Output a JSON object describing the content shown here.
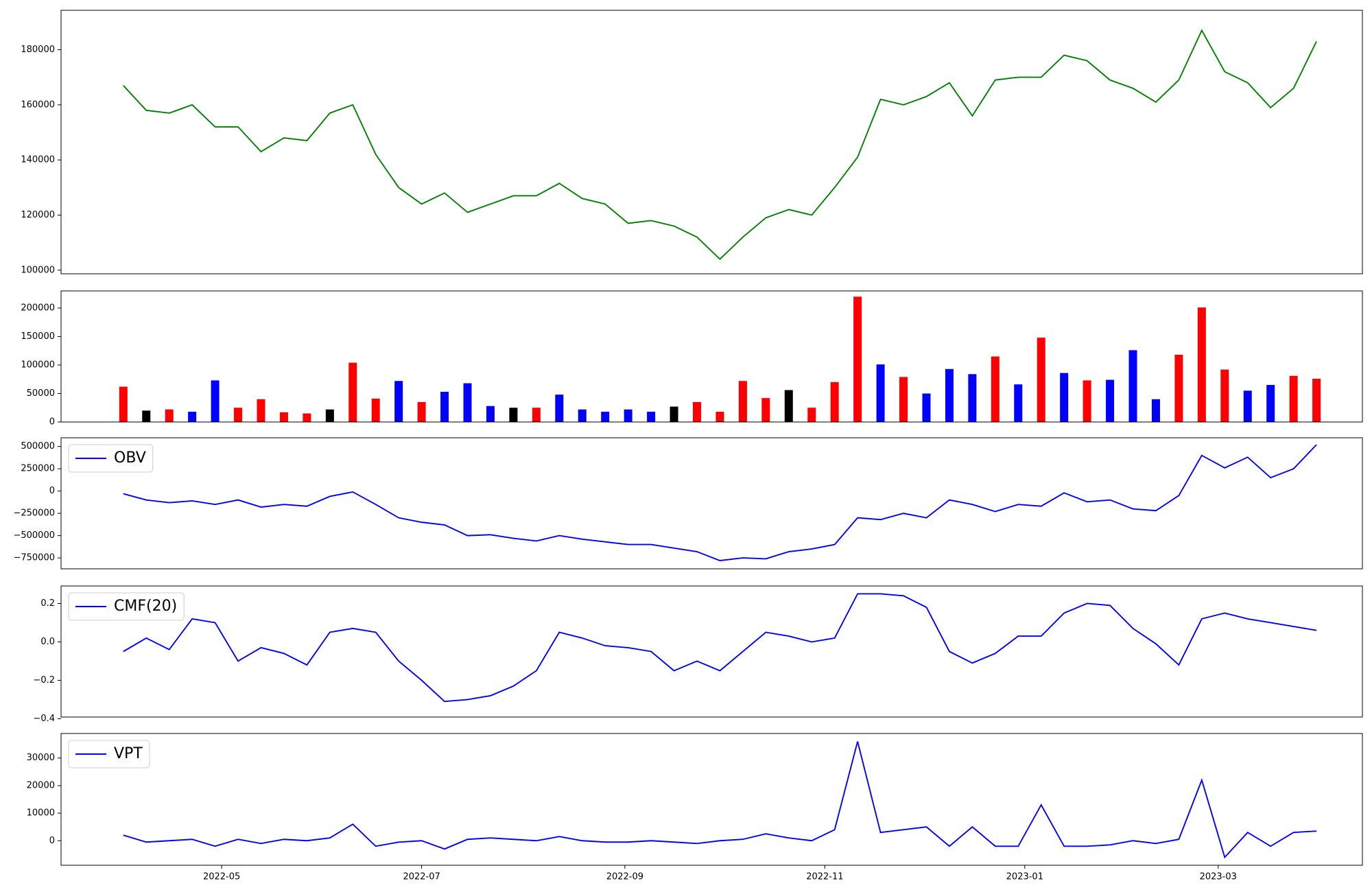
{
  "chart_data": [
    {
      "type": "line",
      "x": [
        "2022-04-01",
        "2022-04-08",
        "2022-04-15",
        "2022-04-22",
        "2022-04-29",
        "2022-05-06",
        "2022-05-13",
        "2022-05-20",
        "2022-05-27",
        "2022-06-03",
        "2022-06-10",
        "2022-06-17",
        "2022-06-24",
        "2022-07-01",
        "2022-07-08",
        "2022-07-15",
        "2022-07-22",
        "2022-07-29",
        "2022-08-05",
        "2022-08-12",
        "2022-08-19",
        "2022-08-26",
        "2022-09-02",
        "2022-09-09",
        "2022-09-16",
        "2022-09-23",
        "2022-09-30",
        "2022-10-07",
        "2022-10-14",
        "2022-10-21",
        "2022-10-28",
        "2022-11-04",
        "2022-11-11",
        "2022-11-18",
        "2022-11-25",
        "2022-12-02",
        "2022-12-09",
        "2022-12-16",
        "2022-12-23",
        "2022-12-30",
        "2023-01-06",
        "2023-01-13",
        "2023-01-20",
        "2023-01-27",
        "2023-02-03",
        "2023-02-10",
        "2023-02-17",
        "2023-02-24",
        "2023-03-03",
        "2023-03-10",
        "2023-03-17",
        "2023-03-24",
        "2023-03-31"
      ],
      "series": [
        {
          "color": "#008000",
          "values": [
            167000,
            158000,
            157000,
            160000,
            152000,
            152000,
            143000,
            148000,
            147000,
            157000,
            160000,
            142000,
            130000,
            124000,
            128000,
            121000,
            124000,
            127000,
            127000,
            131500,
            126000,
            124000,
            117000,
            118000,
            116000,
            112000,
            104000,
            112000,
            119000,
            122000,
            120000,
            130000,
            141000,
            162000,
            160000,
            163000,
            168000,
            156000,
            169000,
            170000,
            170000,
            178000,
            176000,
            169000,
            166000,
            161000,
            169000,
            187000,
            172000,
            168000,
            159000,
            166000,
            183000
          ]
        }
      ],
      "xlim": [
        "2022-03-13",
        "2023-04-14"
      ],
      "ylim": [
        98700,
        194300
      ],
      "yticks": [
        100000,
        120000,
        140000,
        160000,
        180000
      ]
    },
    {
      "type": "bar",
      "x": [
        "2022-04-01",
        "2022-04-08",
        "2022-04-15",
        "2022-04-22",
        "2022-04-29",
        "2022-05-06",
        "2022-05-13",
        "2022-05-20",
        "2022-05-27",
        "2022-06-03",
        "2022-06-10",
        "2022-06-17",
        "2022-06-24",
        "2022-07-01",
        "2022-07-08",
        "2022-07-15",
        "2022-07-22",
        "2022-07-29",
        "2022-08-05",
        "2022-08-12",
        "2022-08-19",
        "2022-08-26",
        "2022-09-02",
        "2022-09-09",
        "2022-09-16",
        "2022-09-23",
        "2022-09-30",
        "2022-10-07",
        "2022-10-14",
        "2022-10-21",
        "2022-10-28",
        "2022-11-04",
        "2022-11-11",
        "2022-11-18",
        "2022-11-25",
        "2022-12-02",
        "2022-12-09",
        "2022-12-16",
        "2022-12-23",
        "2022-12-30",
        "2023-01-06",
        "2023-01-13",
        "2023-01-20",
        "2023-01-27",
        "2023-02-03",
        "2023-02-10",
        "2023-02-17",
        "2023-02-24",
        "2023-03-03",
        "2023-03-10",
        "2023-03-17",
        "2023-03-24",
        "2023-03-31"
      ],
      "values": [
        62000,
        20000,
        22000,
        18000,
        73000,
        25000,
        40000,
        17000,
        15000,
        22000,
        104000,
        41000,
        72000,
        35000,
        53000,
        68000,
        28000,
        25000,
        25000,
        48000,
        22000,
        18000,
        22000,
        18000,
        27000,
        35000,
        18000,
        72000,
        42000,
        56000,
        25000,
        70000,
        220000,
        101000,
        79000,
        50000,
        93000,
        84000,
        115000,
        66000,
        148000,
        86000,
        73000,
        74000,
        126000,
        40000,
        118000,
        201000,
        92000,
        55000,
        65000,
        81000,
        76000
      ],
      "colors": [
        "red",
        "black",
        "red",
        "blue",
        "blue",
        "red",
        "red",
        "red",
        "red",
        "black",
        "red",
        "red",
        "blue",
        "red",
        "blue",
        "blue",
        "blue",
        "black",
        "red",
        "blue",
        "blue",
        "blue",
        "blue",
        "blue",
        "black",
        "red",
        "red",
        "red",
        "red",
        "black",
        "red",
        "red",
        "red",
        "blue",
        "red",
        "blue",
        "blue",
        "blue",
        "red",
        "blue",
        "red",
        "blue",
        "red",
        "blue",
        "blue",
        "blue",
        "red",
        "red",
        "red",
        "blue",
        "blue",
        "red",
        "red"
      ],
      "xlim": [
        "2022-03-13",
        "2023-04-14"
      ],
      "ylim": [
        0,
        230000
      ],
      "yticks": [
        0,
        50000,
        100000,
        150000,
        200000
      ]
    },
    {
      "type": "line",
      "x": [
        "2022-04-01",
        "2022-04-08",
        "2022-04-15",
        "2022-04-22",
        "2022-04-29",
        "2022-05-06",
        "2022-05-13",
        "2022-05-20",
        "2022-05-27",
        "2022-06-03",
        "2022-06-10",
        "2022-06-17",
        "2022-06-24",
        "2022-07-01",
        "2022-07-08",
        "2022-07-15",
        "2022-07-22",
        "2022-07-29",
        "2022-08-05",
        "2022-08-12",
        "2022-08-19",
        "2022-08-26",
        "2022-09-02",
        "2022-09-09",
        "2022-09-16",
        "2022-09-23",
        "2022-09-30",
        "2022-10-07",
        "2022-10-14",
        "2022-10-21",
        "2022-10-28",
        "2022-11-04",
        "2022-11-11",
        "2022-11-18",
        "2022-11-25",
        "2022-12-02",
        "2022-12-09",
        "2022-12-16",
        "2022-12-23",
        "2022-12-30",
        "2023-01-06",
        "2023-01-13",
        "2023-01-20",
        "2023-01-27",
        "2023-02-03",
        "2023-02-10",
        "2023-02-17",
        "2023-02-24",
        "2023-03-03",
        "2023-03-10",
        "2023-03-17",
        "2023-03-24",
        "2023-03-31"
      ],
      "series": [
        {
          "name": "OBV",
          "color": "#0000ff",
          "values": [
            -30000,
            -100000,
            -130000,
            -110000,
            -150000,
            -100000,
            -180000,
            -150000,
            -170000,
            -60000,
            -10000,
            -150000,
            -300000,
            -350000,
            -380000,
            -500000,
            -490000,
            -530000,
            -560000,
            -500000,
            -540000,
            -570000,
            -600000,
            -600000,
            -640000,
            -680000,
            -780000,
            -750000,
            -760000,
            -680000,
            -650000,
            -600000,
            -300000,
            -320000,
            -250000,
            -300000,
            -100000,
            -150000,
            -230000,
            -150000,
            -170000,
            -20000,
            -120000,
            -100000,
            -200000,
            -220000,
            -50000,
            400000,
            260000,
            380000,
            150000,
            250000,
            520000
          ]
        }
      ],
      "xlim": [
        "2022-03-13",
        "2023-04-14"
      ],
      "ylim": [
        -872500,
        598000
      ],
      "yticks": [
        {
          "value": -750000,
          "label": "−750000"
        },
        {
          "value": -500000,
          "label": "−500000"
        },
        {
          "value": -250000,
          "label": "−250000"
        },
        0,
        250000,
        500000
      ],
      "legend": "upper left"
    },
    {
      "type": "line",
      "x": [
        "2022-04-01",
        "2022-04-08",
        "2022-04-15",
        "2022-04-22",
        "2022-04-29",
        "2022-05-06",
        "2022-05-13",
        "2022-05-20",
        "2022-05-27",
        "2022-06-03",
        "2022-06-10",
        "2022-06-17",
        "2022-06-24",
        "2022-07-01",
        "2022-07-08",
        "2022-07-15",
        "2022-07-22",
        "2022-07-29",
        "2022-08-05",
        "2022-08-12",
        "2022-08-19",
        "2022-08-26",
        "2022-09-02",
        "2022-09-09",
        "2022-09-16",
        "2022-09-23",
        "2022-09-30",
        "2022-10-07",
        "2022-10-14",
        "2022-10-21",
        "2022-10-28",
        "2022-11-04",
        "2022-11-11",
        "2022-11-18",
        "2022-11-25",
        "2022-12-02",
        "2022-12-09",
        "2022-12-16",
        "2022-12-23",
        "2022-12-30",
        "2023-01-06",
        "2023-01-13",
        "2023-01-20",
        "2023-01-27",
        "2023-02-03",
        "2023-02-10",
        "2023-02-17",
        "2023-02-24",
        "2023-03-03",
        "2023-03-10",
        "2023-03-17",
        "2023-03-24",
        "2023-03-31"
      ],
      "series": [
        {
          "name": "CMF(20)",
          "color": "#0000ff",
          "values": [
            -0.05,
            0.02,
            -0.04,
            0.12,
            0.1,
            -0.1,
            -0.03,
            -0.06,
            -0.12,
            0.05,
            0.07,
            0.05,
            -0.1,
            -0.2,
            -0.31,
            -0.3,
            -0.28,
            -0.23,
            -0.15,
            0.05,
            0.02,
            -0.02,
            -0.03,
            -0.05,
            -0.15,
            -0.1,
            -0.15,
            -0.05,
            0.05,
            0.03,
            0.0,
            0.02,
            0.25,
            0.25,
            0.24,
            0.18,
            -0.05,
            -0.11,
            -0.06,
            0.03,
            0.03,
            0.15,
            0.2,
            0.19,
            0.07,
            -0.01,
            -0.12,
            0.12,
            0.15,
            0.12,
            0.1,
            0.08,
            0.06
          ]
        }
      ],
      "xlim": [
        "2022-03-13",
        "2023-04-14"
      ],
      "ylim": [
        -0.391,
        0.291
      ],
      "yticks": [
        {
          "value": -0.4,
          "label": "−0.4"
        },
        {
          "value": -0.2,
          "label": "−0.2"
        },
        {
          "value": 0,
          "label": "0.0"
        },
        0.2
      ],
      "legend": "upper left"
    },
    {
      "type": "line",
      "x": [
        "2022-04-01",
        "2022-04-08",
        "2022-04-15",
        "2022-04-22",
        "2022-04-29",
        "2022-05-06",
        "2022-05-13",
        "2022-05-20",
        "2022-05-27",
        "2022-06-03",
        "2022-06-10",
        "2022-06-17",
        "2022-06-24",
        "2022-07-01",
        "2022-07-08",
        "2022-07-15",
        "2022-07-22",
        "2022-07-29",
        "2022-08-05",
        "2022-08-12",
        "2022-08-19",
        "2022-08-26",
        "2022-09-02",
        "2022-09-09",
        "2022-09-16",
        "2022-09-23",
        "2022-09-30",
        "2022-10-07",
        "2022-10-14",
        "2022-10-21",
        "2022-10-28",
        "2022-11-04",
        "2022-11-11",
        "2022-11-18",
        "2022-11-25",
        "2022-12-02",
        "2022-12-09",
        "2022-12-16",
        "2022-12-23",
        "2022-12-30",
        "2023-01-06",
        "2023-01-13",
        "2023-01-20",
        "2023-01-27",
        "2023-02-03",
        "2023-02-10",
        "2023-02-17",
        "2023-02-24",
        "2023-03-03",
        "2023-03-10",
        "2023-03-17",
        "2023-03-24",
        "2023-03-31"
      ],
      "series": [
        {
          "name": "VPT",
          "color": "#0000ff",
          "values": [
            2000,
            -500,
            0,
            500,
            -2000,
            500,
            -1000,
            500,
            0,
            1000,
            6000,
            -2000,
            -500,
            0,
            -3000,
            500,
            1000,
            500,
            0,
            1500,
            0,
            -500,
            -500,
            0,
            -500,
            -1000,
            0,
            500,
            2500,
            1000,
            0,
            4000,
            36000,
            3000,
            4000,
            5000,
            -2000,
            5000,
            -2000,
            -2000,
            13000,
            -2000,
            -2000,
            -1500,
            0,
            -1000,
            500,
            22000,
            -6000,
            3000,
            -2000,
            3000,
            3500
          ]
        }
      ],
      "xlim": [
        "2022-03-13",
        "2023-04-14"
      ],
      "ylim": [
        -8900,
        38900
      ],
      "yticks": [
        0,
        10000,
        20000,
        30000
      ],
      "xticks": [
        {
          "value": "2022-05-01",
          "label": "2022-05"
        },
        {
          "value": "2022-07-01",
          "label": "2022-07"
        },
        {
          "value": "2022-09-01",
          "label": "2022-09"
        },
        {
          "value": "2022-11-01",
          "label": "2022-11"
        },
        {
          "value": "2023-01-01",
          "label": "2023-01"
        },
        {
          "value": "2023-03-01",
          "label": "2023-03"
        }
      ],
      "legend": "upper left"
    }
  ]
}
